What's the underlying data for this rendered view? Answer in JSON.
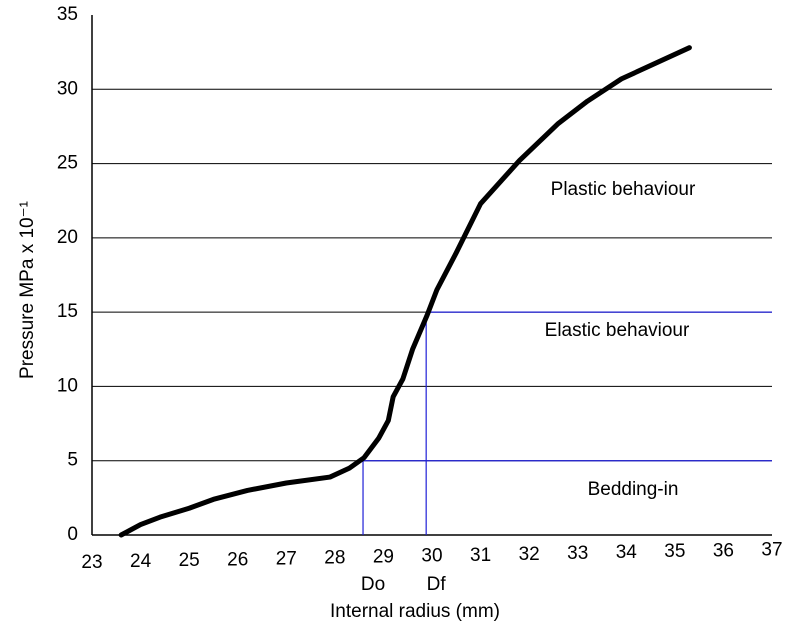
{
  "chart_data": {
    "type": "line",
    "x_label": "Internal radius (mm)",
    "y_label": "Pressure MPa x 10⁻¹",
    "xlim": [
      23,
      37
    ],
    "ylim": [
      0,
      35
    ],
    "xticks": [
      23,
      24,
      25,
      26,
      27,
      28,
      29,
      30,
      31,
      32,
      33,
      34,
      35,
      36,
      37
    ],
    "yticks": [
      0,
      5,
      10,
      15,
      20,
      25,
      30,
      35
    ],
    "grid": true,
    "series": [
      {
        "color": "#000000",
        "x": [
          23.6,
          24,
          24.4,
          25,
          25.5,
          26.2,
          27,
          27.9,
          28.3,
          28.6,
          28.9,
          29.1,
          29.2,
          29.4,
          29.6,
          29.9,
          30.1,
          30.5,
          31,
          31.8,
          32.6,
          33.2,
          33.9,
          35.3
        ],
        "values": [
          0,
          0.7,
          1.2,
          1.8,
          2.4,
          3,
          3.5,
          3.9,
          4.5,
          5.2,
          6.5,
          7.7,
          9.3,
          10.5,
          12.5,
          14.8,
          16.5,
          19,
          22.3,
          25.2,
          27.7,
          29.2,
          30.7,
          32.8
        ]
      }
    ],
    "markers": [
      {
        "label": "Do",
        "x": 28.58,
        "y": 5,
        "color": "#1f1fd6"
      },
      {
        "label": "Df",
        "x": 29.88,
        "y": 15,
        "color": "#1f1fd6"
      }
    ],
    "annotations": [
      "Plastic behaviour",
      "Elastic behaviour",
      "Bedding-in"
    ]
  }
}
